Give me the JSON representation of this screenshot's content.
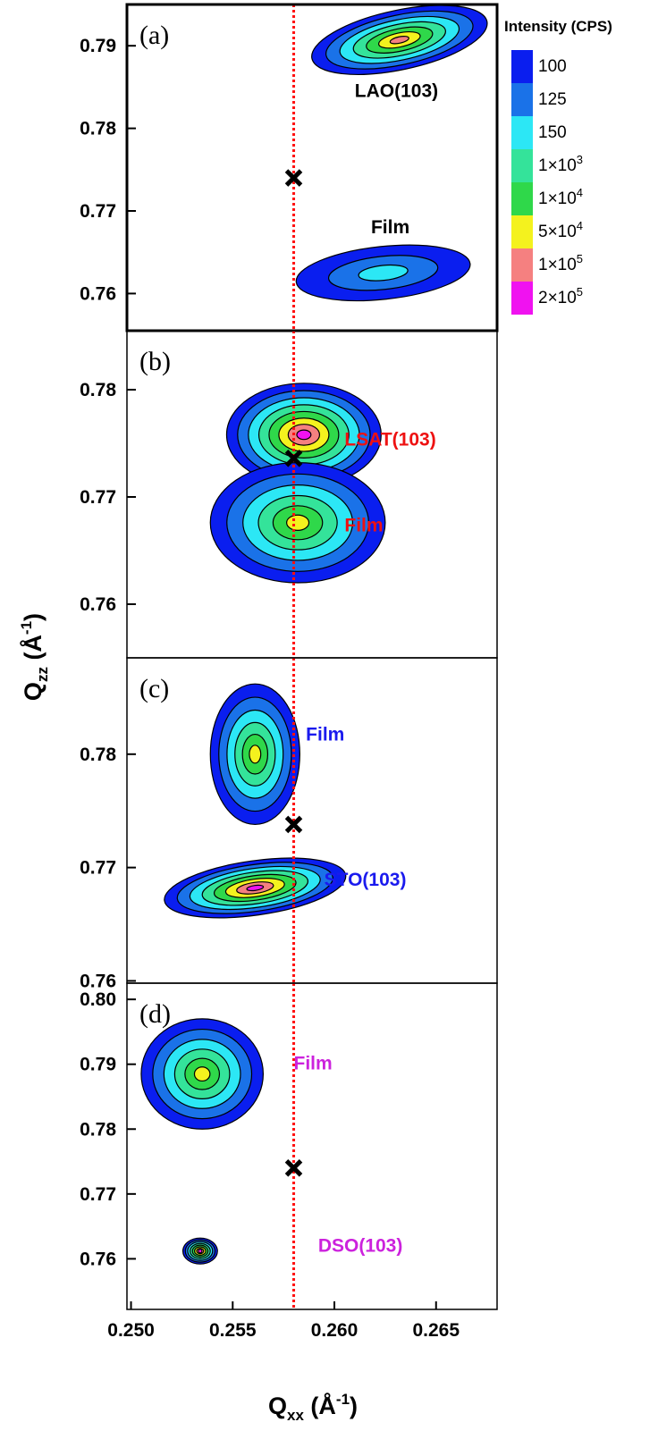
{
  "chart_data": {
    "type": "heatmap",
    "xlabel": "Qxx (Å-1)",
    "xlabel_main": "Q",
    "xlabel_sub": "xx",
    "xlabel_unit": "(Å",
    "xlabel_sup": "-1",
    "xlabel_close": ")",
    "ylabel": "Qzz (Å-1)",
    "ylabel_main": "Q",
    "ylabel_sub": "zz",
    "ylabel_unit": "(Å",
    "ylabel_sup": "-1",
    "ylabel_close": ")",
    "xlim": [
      0.2498,
      0.268
    ],
    "xticks": [
      "0.250",
      "0.255",
      "0.260",
      "0.265"
    ],
    "xtick_values": [
      0.25,
      0.255,
      0.26,
      0.265
    ],
    "reference_line_qxx": 0.258,
    "colorbar": {
      "title": "Intensity (CPS)",
      "levels": [
        "100",
        "125",
        "150",
        "1×10",
        "1×10",
        "5×10",
        "1×10",
        "2×10"
      ],
      "level_exponents": [
        "",
        "",
        "",
        "3",
        "4",
        "4",
        "5",
        "5"
      ],
      "colors": [
        "#0a1eef",
        "#1a72e8",
        "#2ce7f5",
        "#34e39a",
        "#2fd84a",
        "#f4f21e",
        "#f58080",
        "#f012f0"
      ]
    },
    "panels": [
      {
        "label": "(a)",
        "ylim": [
          0.7555,
          0.795
        ],
        "yticks": [
          "0.76",
          "0.77",
          "0.78",
          "0.79"
        ],
        "ytick_values": [
          0.76,
          0.77,
          0.78,
          0.79
        ],
        "marker": {
          "qxx": 0.258,
          "qzz": 0.774
        },
        "peaks": [
          {
            "name": "LAO(103)",
            "qxx": 0.2632,
            "qzz": 0.7907,
            "spread_qxx": 0.0044,
            "spread_qzz": 0.0036,
            "tilt": -12,
            "max_level": 7
          },
          {
            "name": "Film",
            "qxx": 0.2624,
            "qzz": 0.7625,
            "spread_qxx": 0.0043,
            "spread_qzz": 0.0032,
            "tilt": -6,
            "max_level": 3
          }
        ],
        "annotations": [
          {
            "text": "LAO(103)",
            "qxx": 0.261,
            "qzz": 0.7838,
            "color": "#000000"
          },
          {
            "text": "Film",
            "qxx": 0.2618,
            "qzz": 0.7673,
            "color": "#000000"
          }
        ]
      },
      {
        "label": "(b)",
        "ylim": [
          0.755,
          0.7855
        ],
        "yticks": [
          "0.76",
          "0.77",
          "0.78"
        ],
        "ytick_values": [
          0.76,
          0.77,
          0.78
        ],
        "marker": {
          "qxx": 0.258,
          "qzz": 0.7736
        },
        "peaks": [
          {
            "name": "LSAT(103)",
            "qxx": 0.2585,
            "qzz": 0.7758,
            "spread_qxx": 0.0038,
            "spread_qzz": 0.0048,
            "tilt": 0,
            "max_level": 8
          },
          {
            "name": "Film",
            "qxx": 0.2582,
            "qzz": 0.7676,
            "spread_qxx": 0.0043,
            "spread_qzz": 0.0056,
            "tilt": 0,
            "max_level": 6
          }
        ],
        "annotations": [
          {
            "text": "LSAT(103)",
            "qxx": 0.2605,
            "qzz": 0.7748,
            "color": "#ee1111"
          },
          {
            "text": "Film",
            "qxx": 0.2605,
            "qzz": 0.7668,
            "color": "#ee1111"
          }
        ]
      },
      {
        "label": "(c)",
        "ylim": [
          0.7598,
          0.7885
        ],
        "yticks": [
          "0.76",
          "0.77",
          "0.78"
        ],
        "ytick_values": [
          0.76,
          0.77,
          0.78
        ],
        "marker": {
          "qxx": 0.258,
          "qzz": 0.7738
        },
        "peaks": [
          {
            "name": "Film",
            "qxx": 0.2561,
            "qzz": 0.78,
            "spread_qxx": 0.0022,
            "spread_qzz": 0.0062,
            "tilt": 0,
            "max_level": 6
          },
          {
            "name": "STO(103)",
            "qxx": 0.2561,
            "qzz": 0.7682,
            "spread_qxx": 0.0045,
            "spread_qzz": 0.0024,
            "tilt": -8,
            "max_level": 8
          }
        ],
        "annotations": [
          {
            "text": "Film",
            "qxx": 0.2586,
            "qzz": 0.7812,
            "color": "#1a1aee"
          },
          {
            "text": "STO(103)",
            "qxx": 0.2595,
            "qzz": 0.7684,
            "color": "#1a1aee"
          }
        ]
      },
      {
        "label": "(d)",
        "ylim": [
          0.7522,
          0.8025
        ],
        "yticks": [
          "0.76",
          "0.77",
          "0.78",
          "0.79",
          "0.80"
        ],
        "ytick_values": [
          0.76,
          0.77,
          0.78,
          0.79,
          0.8
        ],
        "marker": {
          "qxx": 0.258,
          "qzz": 0.774
        },
        "peaks": [
          {
            "name": "Film",
            "qxx": 0.2535,
            "qzz": 0.7885,
            "spread_qxx": 0.003,
            "spread_qzz": 0.0085,
            "tilt": 0,
            "max_level": 6
          },
          {
            "name": "DSO(103)",
            "qxx": 0.2534,
            "qzz": 0.7612,
            "spread_qxx": 0.00085,
            "spread_qzz": 0.002,
            "tilt": 0,
            "max_level": 8
          }
        ],
        "annotations": [
          {
            "text": "Film",
            "qxx": 0.258,
            "qzz": 0.7892,
            "color": "#cc22dd"
          },
          {
            "text": "DSO(103)",
            "qxx": 0.2592,
            "qzz": 0.7611,
            "color": "#cc22dd"
          }
        ]
      }
    ]
  }
}
